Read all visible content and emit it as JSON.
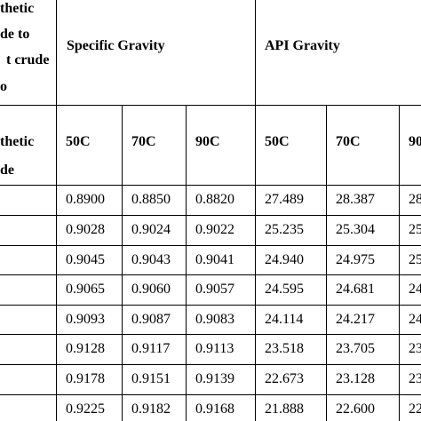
{
  "header": {
    "row_label_lines": [
      "thetic",
      "de to",
      "t crude",
      "o"
    ],
    "groups": [
      "Specific Gravity",
      "API Gravity"
    ]
  },
  "subheader": {
    "row_label_lines": [
      "thetic",
      "de"
    ],
    "columns": [
      "50C",
      "70C",
      "90C",
      "50C",
      "70C",
      "90"
    ]
  },
  "table": {
    "rows": [
      [
        "0.8900",
        "0.8850",
        "0.8820",
        "27.489",
        "28.387",
        "28"
      ],
      [
        "0.9028",
        "0.9024",
        "0.9022",
        "25.235",
        "25.304",
        "25"
      ],
      [
        "0.9045",
        "0.9043",
        "0.9041",
        "24.940",
        "24.975",
        "25"
      ],
      [
        "0.9065",
        "0.9060",
        "0.9057",
        "24.595",
        "24.681",
        "24"
      ],
      [
        "0.9093",
        "0.9087",
        "0.9083",
        "24.114",
        "24.217",
        "24"
      ],
      [
        "0.9128",
        "0.9117",
        "0.9113",
        "23.518",
        "23.705",
        "23"
      ],
      [
        "0.9178",
        "0.9151",
        "0.9139",
        "22.673",
        "23.128",
        "23"
      ],
      [
        "0.9225",
        "0.9182",
        "0.9168",
        "21.888",
        "22.600",
        "22"
      ]
    ]
  }
}
